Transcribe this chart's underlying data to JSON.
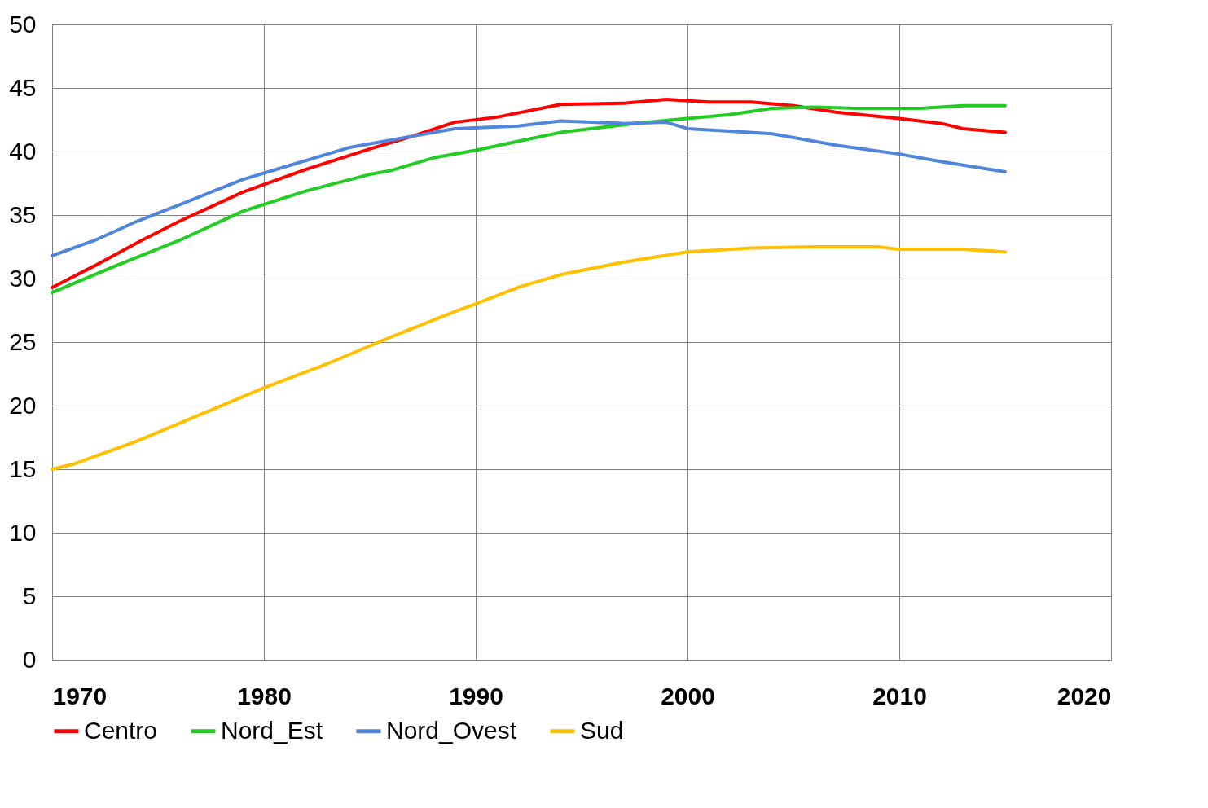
{
  "chart_data": {
    "type": "line",
    "xlim": [
      1970,
      2020
    ],
    "xticks": [
      1970,
      1980,
      1990,
      2000,
      2010,
      2020
    ],
    "ylim": [
      0,
      50
    ],
    "yticks": [
      0,
      5,
      10,
      15,
      20,
      25,
      30,
      35,
      40,
      45,
      50
    ],
    "grid": true,
    "legend": "bottom",
    "marker": "none",
    "line_style": "solid",
    "series": [
      {
        "name": "Centro",
        "color": "#ff0000",
        "x": [
          1970,
          1972,
          1974,
          1976,
          1979,
          1982,
          1985,
          1987,
          1989,
          1991,
          1994,
          1997,
          1999,
          2001,
          2003,
          2005,
          2007,
          2010,
          2012,
          2013,
          2015
        ],
        "values": [
          29.3,
          31.0,
          32.8,
          34.5,
          36.8,
          38.6,
          40.2,
          41.2,
          42.3,
          42.7,
          43.7,
          43.8,
          44.1,
          43.9,
          43.9,
          43.6,
          43.1,
          42.6,
          42.2,
          41.8,
          41.5
        ]
      },
      {
        "name": "Nord_Est",
        "color": "#22cc22",
        "x": [
          1970,
          1973,
          1976,
          1979,
          1982,
          1985,
          1986,
          1988,
          1990,
          1992,
          1994,
          1996,
          1998,
          2000,
          2002,
          2004,
          2006,
          2008,
          2011,
          2013,
          2015
        ],
        "values": [
          28.9,
          31.0,
          33.0,
          35.3,
          36.9,
          38.2,
          38.5,
          39.5,
          40.1,
          40.8,
          41.5,
          41.9,
          42.3,
          42.6,
          42.9,
          43.4,
          43.5,
          43.4,
          43.4,
          43.6,
          43.6
        ]
      },
      {
        "name": "Nord_Ovest",
        "color": "#4f86d9",
        "x": [
          1970,
          1972,
          1974,
          1976,
          1979,
          1981,
          1984,
          1986,
          1989,
          1992,
          1994,
          1997,
          1999,
          2000,
          2002,
          2004,
          2007,
          2010,
          2012,
          2015
        ],
        "values": [
          31.8,
          33.0,
          34.5,
          35.8,
          37.8,
          38.8,
          40.3,
          40.9,
          41.8,
          42.0,
          42.4,
          42.2,
          42.3,
          41.8,
          41.6,
          41.4,
          40.5,
          39.8,
          39.2,
          38.4
        ]
      },
      {
        "name": "Sud",
        "color": "#ffc000",
        "x": [
          1970,
          1971,
          1974,
          1977,
          1980,
          1983,
          1986,
          1989,
          1990,
          1992,
          1994,
          1997,
          2000,
          2003,
          2006,
          2009,
          2010,
          2013,
          2015
        ],
        "values": [
          15.0,
          15.4,
          17.2,
          19.3,
          21.4,
          23.3,
          25.4,
          27.4,
          28.0,
          29.3,
          30.3,
          31.3,
          32.1,
          32.4,
          32.5,
          32.5,
          32.3,
          32.3,
          32.1
        ]
      }
    ]
  }
}
